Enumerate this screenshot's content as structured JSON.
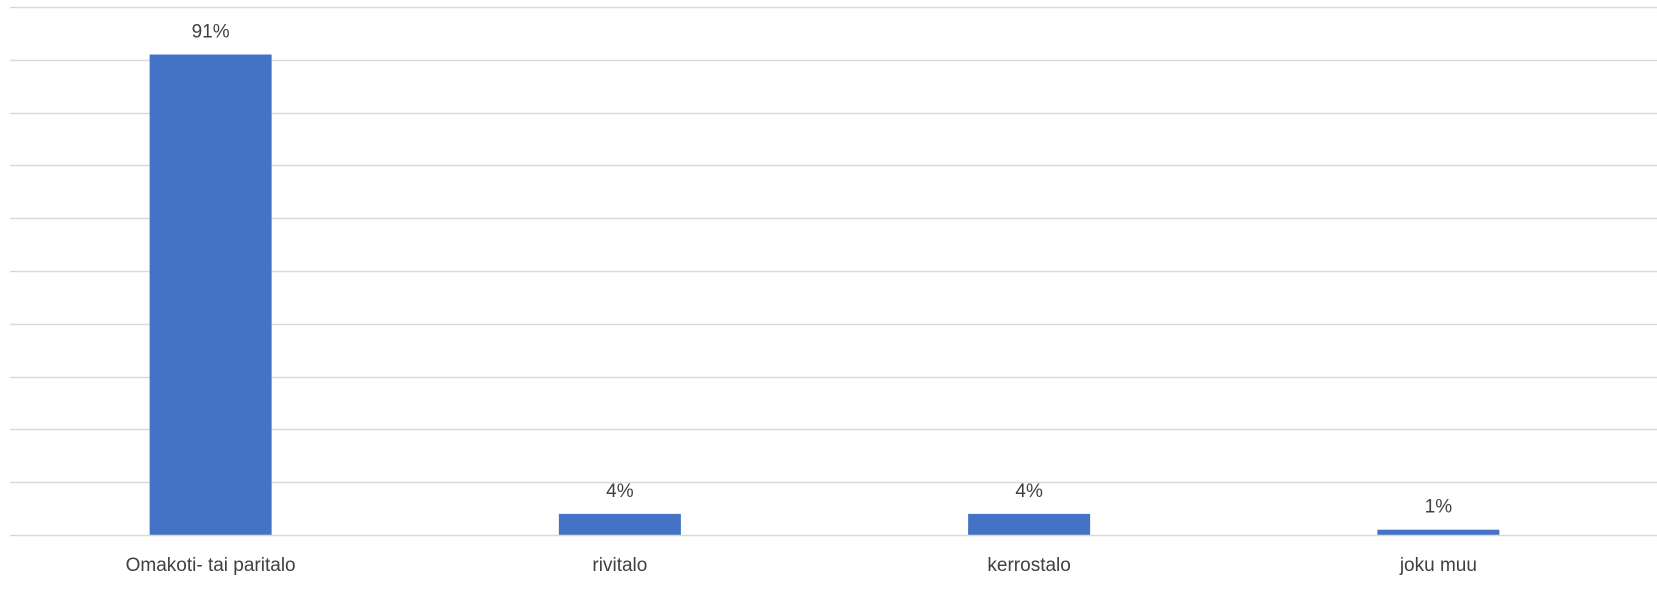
{
  "chart_data": {
    "type": "bar",
    "title": "",
    "xlabel": "",
    "ylabel": "",
    "categories": [
      "Omakoti- tai paritalo",
      "rivitalo",
      "kerrostalo",
      "joku muu"
    ],
    "values": [
      91,
      4,
      4,
      1
    ],
    "value_labels": [
      "91%",
      "4%",
      "4%",
      "1%"
    ],
    "ylim": [
      0,
      100
    ],
    "grid": true,
    "legend": "none",
    "colors": {
      "bar": "#4472C4",
      "grid": "#D9D9D9",
      "axis": "#D9D9D9",
      "text": "#404040"
    }
  }
}
